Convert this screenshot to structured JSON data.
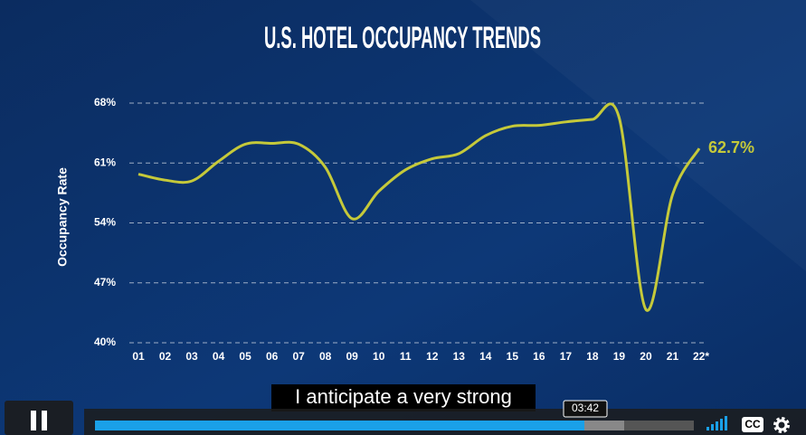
{
  "chart_data": {
    "type": "line",
    "title": "U.S. HOTEL OCCUPANCY TRENDS",
    "y_label": "Occupancy Rate",
    "categories": [
      "01",
      "02",
      "03",
      "04",
      "05",
      "06",
      "07",
      "08",
      "09",
      "10",
      "11",
      "12",
      "13",
      "14",
      "15",
      "16",
      "17",
      "18",
      "19",
      "20",
      "21",
      "22*"
    ],
    "values": [
      59.7,
      59.0,
      58.9,
      61.2,
      63.2,
      63.3,
      63.2,
      60.5,
      54.5,
      57.7,
      60.2,
      61.5,
      62.1,
      64.2,
      65.3,
      65.4,
      65.8,
      66.1,
      66.3,
      43.9,
      57.3,
      62.7
    ],
    "value_labels": [
      null,
      null,
      null,
      null,
      null,
      null,
      null,
      null,
      null,
      null,
      null,
      null,
      null,
      null,
      null,
      null,
      null,
      null,
      null,
      null,
      null,
      "62.7%"
    ],
    "color": "#c5c93a",
    "ylim": [
      40,
      68
    ],
    "yticks": [
      {
        "value": 40,
        "label": "40%"
      },
      {
        "value": 47,
        "label": "47%"
      },
      {
        "value": 54,
        "label": "54%"
      },
      {
        "value": 61,
        "label": "61%"
      },
      {
        "value": 68,
        "label": "68%"
      }
    ],
    "grid": true
  },
  "player": {
    "subtitle": "I anticipate a very strong",
    "time": "03:42",
    "cc": "CC"
  }
}
